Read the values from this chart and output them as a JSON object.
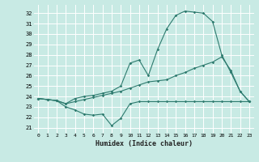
{
  "xlabel": "Humidex (Indice chaleur)",
  "background_color": "#c8eae4",
  "grid_color": "#ffffff",
  "line_color": "#2d7a6e",
  "ylim": [
    20.5,
    32.8
  ],
  "xlim": [
    -0.5,
    23.5
  ],
  "yticks": [
    21,
    22,
    23,
    24,
    25,
    26,
    27,
    28,
    29,
    30,
    31,
    32
  ],
  "xticks": [
    0,
    1,
    2,
    3,
    4,
    5,
    6,
    7,
    8,
    9,
    10,
    11,
    12,
    13,
    14,
    15,
    16,
    17,
    18,
    19,
    20,
    21,
    22,
    23
  ],
  "curve1_x": [
    0,
    1,
    2,
    3,
    4,
    5,
    6,
    7,
    8,
    9,
    10,
    11,
    12,
    13,
    14,
    15,
    16,
    17,
    18,
    19,
    20,
    21,
    22,
    23
  ],
  "curve1_y": [
    23.8,
    23.7,
    23.6,
    23.3,
    23.8,
    24.0,
    24.1,
    24.3,
    24.5,
    25.0,
    27.2,
    27.5,
    26.0,
    28.5,
    30.5,
    31.8,
    32.2,
    32.1,
    32.0,
    31.2,
    28.0,
    26.3,
    24.5,
    23.5
  ],
  "curve2_x": [
    0,
    1,
    2,
    3,
    4,
    5,
    6,
    7,
    8,
    9,
    10,
    11,
    12,
    13,
    14,
    15,
    16,
    17,
    18,
    19,
    20,
    21,
    22,
    23
  ],
  "curve2_y": [
    23.8,
    23.7,
    23.6,
    23.3,
    23.5,
    23.7,
    23.9,
    24.1,
    24.3,
    24.5,
    24.8,
    25.1,
    25.4,
    25.5,
    25.6,
    26.0,
    26.3,
    26.7,
    27.0,
    27.3,
    27.8,
    26.5,
    24.5,
    23.5
  ],
  "curve3_x": [
    0,
    1,
    2,
    3,
    4,
    5,
    6,
    7,
    8,
    9,
    10,
    11,
    12,
    13,
    14,
    15,
    16,
    17,
    18,
    19,
    20,
    21,
    22,
    23
  ],
  "curve3_y": [
    23.8,
    23.7,
    23.6,
    23.0,
    22.7,
    22.3,
    22.2,
    22.3,
    21.2,
    21.9,
    23.3,
    23.5,
    23.5,
    23.5,
    23.5,
    23.5,
    23.5,
    23.5,
    23.5,
    23.5,
    23.5,
    23.5,
    23.5,
    23.5
  ]
}
